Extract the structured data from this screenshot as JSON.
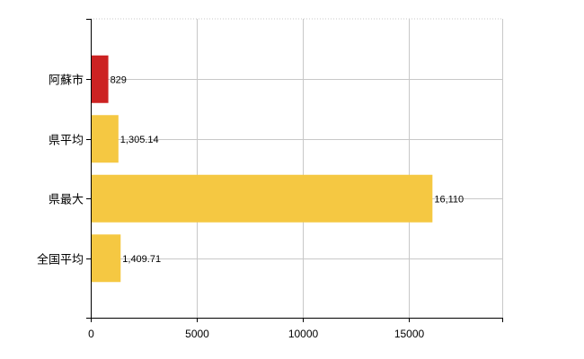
{
  "chart_data": {
    "type": "bar",
    "orientation": "horizontal",
    "categories": [
      "阿蘇市",
      "県平均",
      "県最大",
      "全国平均"
    ],
    "values": [
      829,
      1305.14,
      16110,
      1409.71
    ],
    "value_labels": [
      "829",
      "1,305.14",
      "16,110",
      "1,409.71"
    ],
    "bar_colors": [
      "#cc2222",
      "#f5c842",
      "#f5c842",
      "#f5c842"
    ],
    "xlim": [
      0,
      19400
    ],
    "xticks": [
      0,
      5000,
      10000,
      15000
    ],
    "xtick_labels": [
      "0",
      "5000",
      "10000",
      "15000"
    ],
    "grid": true,
    "legend": "none",
    "title": "",
    "xlabel": "",
    "ylabel": ""
  }
}
